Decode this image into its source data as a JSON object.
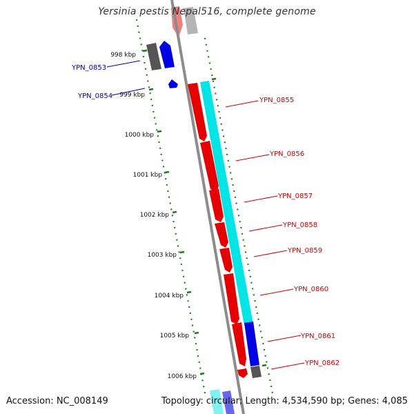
{
  "header": {
    "title": "Yersinia pestis Nepal516, complete genome"
  },
  "footer": {
    "accession": "Accession: NC_008149",
    "topology": "Topology: circular; Length: 4,534,590 bp; Genes: 4,085"
  },
  "colors": {
    "backbone": "#8c8c8c",
    "ruler": "#1f7a1f",
    "forward_gene": "#e60000",
    "reverse_gene": "#0000e6",
    "feature_track": "#00e5e5",
    "gray_gene": "#555555",
    "forward_label": "#cc0000",
    "reverse_label": "#0000aa"
  },
  "ruler_ticks": [
    {
      "label": "998 kbp"
    },
    {
      "label": "999 kbp"
    },
    {
      "label": "1000 kbp"
    },
    {
      "label": "1001 kbp"
    },
    {
      "label": "1002 kbp"
    },
    {
      "label": "1003 kbp"
    },
    {
      "label": "1004 kbp"
    },
    {
      "label": "1005 kbp"
    },
    {
      "label": "1006 kbp"
    }
  ],
  "reverse_genes": [
    {
      "label": "YPN_0853"
    },
    {
      "label": "YPN_0854"
    }
  ],
  "forward_genes": [
    {
      "label": "YPN_0855"
    },
    {
      "label": "YPN_0856"
    },
    {
      "label": "YPN_0857"
    },
    {
      "label": "YPN_0858"
    },
    {
      "label": "YPN_0859"
    },
    {
      "label": "YPN_0860"
    },
    {
      "label": "YPN_0861"
    },
    {
      "label": "YPN_0862"
    }
  ]
}
